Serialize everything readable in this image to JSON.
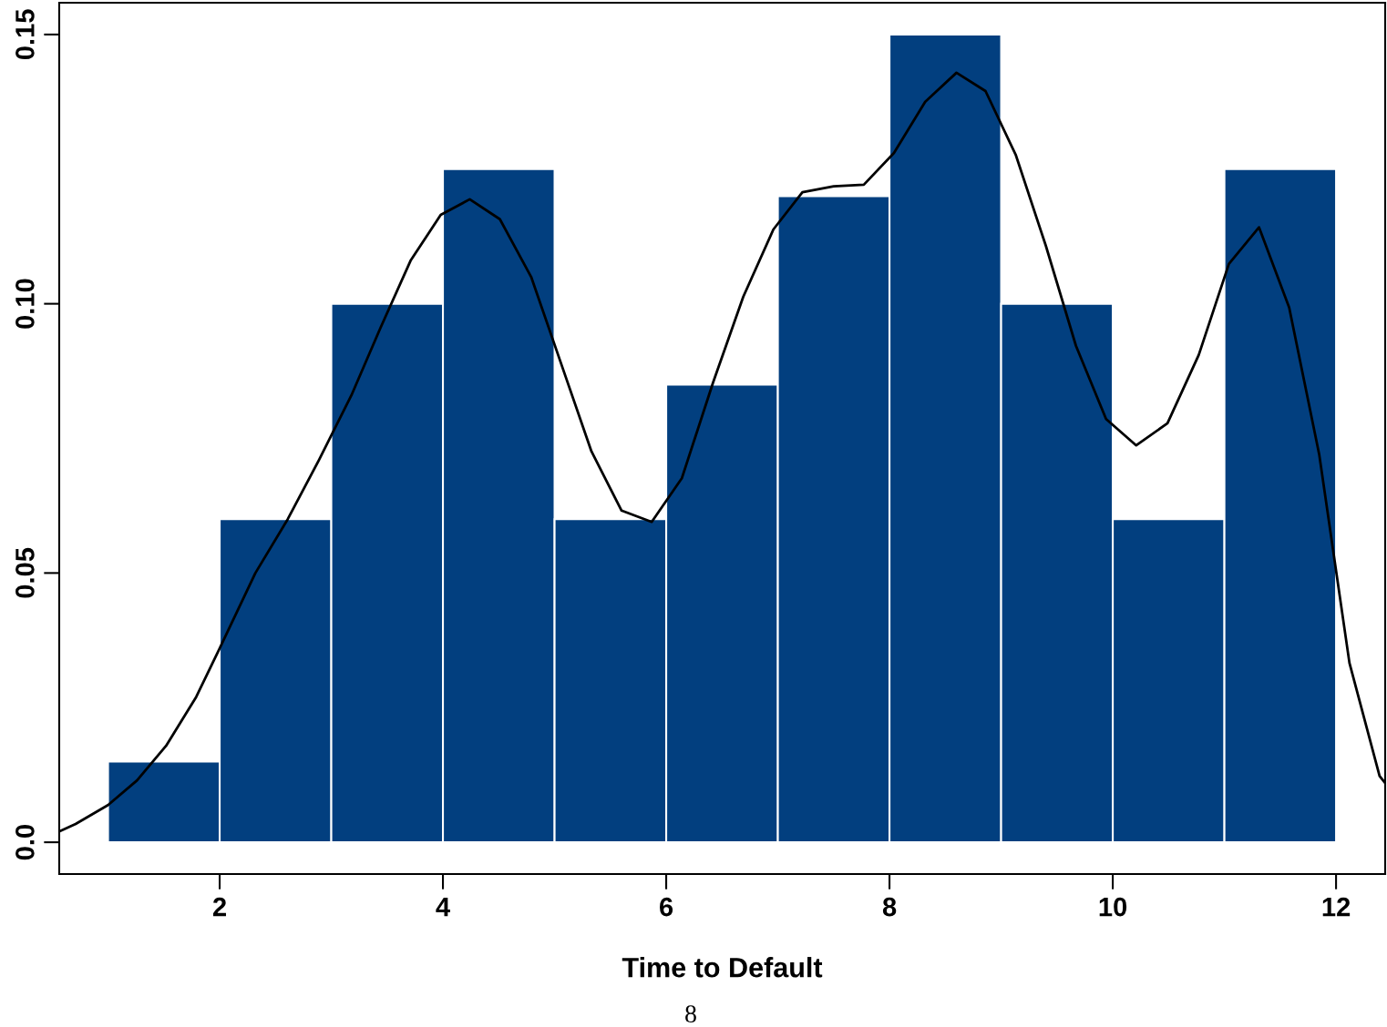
{
  "chart_data": {
    "type": "histogram",
    "xlabel": "Time to Default",
    "bins": [
      1,
      2,
      3,
      4,
      5,
      6,
      7,
      8,
      9,
      10,
      11,
      12
    ],
    "values": [
      0.015,
      0.06,
      0.1,
      0.125,
      0.06,
      0.085,
      0.12,
      0.15,
      0.1,
      0.06,
      0.125
    ],
    "color": "#023f7f",
    "series": [
      {
        "type": "line",
        "color": "#000000",
        "x": [
          0.563,
          0.71,
          1.0,
          1.26,
          1.52,
          1.79,
          2.0,
          2.32,
          2.61,
          2.89,
          3.18,
          3.44,
          3.71,
          3.98,
          4.24,
          4.51,
          4.79,
          5.06,
          5.33,
          5.6,
          5.87,
          6.14,
          6.42,
          6.69,
          6.96,
          7.22,
          7.5,
          7.77,
          8.04,
          8.32,
          8.6,
          8.86,
          9.13,
          9.4,
          9.67,
          9.94,
          10.21,
          10.49,
          10.77,
          11.04,
          11.31,
          11.58,
          11.85,
          12.12,
          12.39,
          12.44
        ],
        "values": [
          0.002,
          0.0034,
          0.0069,
          0.0115,
          0.0179,
          0.027,
          0.036,
          0.05,
          0.06,
          0.071,
          0.083,
          0.0955,
          0.108,
          0.1165,
          0.1194,
          0.1157,
          0.105,
          0.0888,
          0.0726,
          0.0616,
          0.0595,
          0.0676,
          0.0854,
          0.1013,
          0.1138,
          0.1207,
          0.1218,
          0.1221,
          0.128,
          0.1375,
          0.1429,
          0.1395,
          0.1277,
          0.1108,
          0.0922,
          0.0786,
          0.0737,
          0.0778,
          0.0905,
          0.1074,
          0.1142,
          0.0993,
          0.0719,
          0.0333,
          0.0123,
          0.011
        ]
      }
    ],
    "xlim": [
      0.563,
      12.44
    ],
    "ylim": [
      -0.0059,
      0.1559
    ],
    "xticks": [
      2,
      4,
      6,
      8,
      10,
      12
    ],
    "yticks": [
      {
        "value": 0,
        "label": "0.0"
      },
      0.05,
      {
        "value": 0.1,
        "label": "0.10"
      },
      0.15
    ],
    "grid": false,
    "legend": false,
    "annotations": [
      "8"
    ]
  }
}
